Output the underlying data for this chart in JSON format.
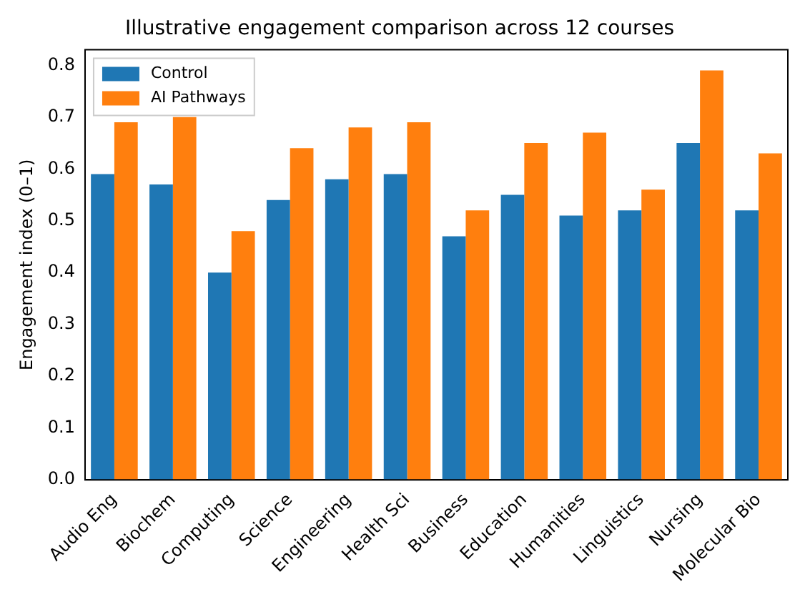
{
  "chart_data": {
    "type": "bar",
    "title": "Illustrative engagement comparison across 12 courses",
    "ylabel": "Engagement index (0–1)",
    "categories": [
      "Audio Eng",
      "Biochem",
      "Computing",
      "Science",
      "Engineering",
      "Health Sci",
      "Business",
      "Education",
      "Humanities",
      "Linguistics",
      "Nursing",
      "Molecular Bio"
    ],
    "series": [
      {
        "name": "Control",
        "color": "#1f77b4",
        "values": [
          0.59,
          0.57,
          0.4,
          0.54,
          0.58,
          0.59,
          0.47,
          0.55,
          0.51,
          0.52,
          0.65,
          0.52
        ]
      },
      {
        "name": "AI Pathways",
        "color": "#ff7f0e",
        "values": [
          0.69,
          0.7,
          0.48,
          0.64,
          0.68,
          0.69,
          0.52,
          0.65,
          0.67,
          0.56,
          0.79,
          0.63
        ]
      }
    ],
    "ylim": [
      0,
      0.83
    ],
    "yticks": [
      {
        "value": 0,
        "label": "0.0"
      },
      0.1,
      0.2,
      0.3,
      0.4,
      0.5,
      0.6,
      0.7,
      0.8
    ],
    "grid": false,
    "legend": "top left"
  }
}
